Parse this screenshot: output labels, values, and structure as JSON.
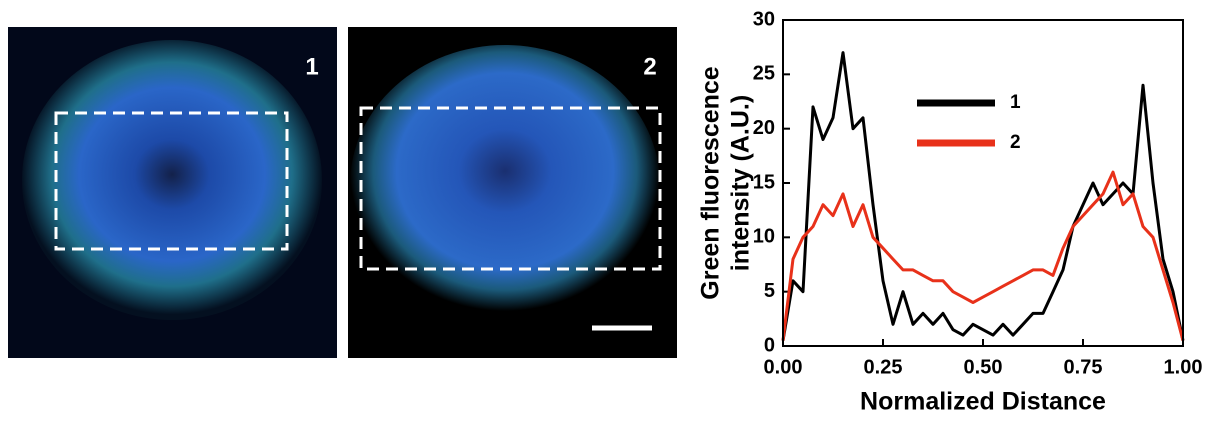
{
  "panels": [
    {
      "label": "1"
    },
    {
      "label": "2"
    }
  ],
  "chart_data": {
    "type": "line",
    "xlabel": "Normalized Distance",
    "ylabel_lines": [
      "Green fluorescence",
      "intensity (A.U.)"
    ],
    "x": [
      0,
      0.025,
      0.05,
      0.075,
      0.1,
      0.125,
      0.15,
      0.175,
      0.2,
      0.225,
      0.25,
      0.275,
      0.3,
      0.325,
      0.35,
      0.375,
      0.4,
      0.425,
      0.45,
      0.475,
      0.5,
      0.525,
      0.55,
      0.575,
      0.6,
      0.625,
      0.65,
      0.675,
      0.7,
      0.725,
      0.75,
      0.775,
      0.8,
      0.825,
      0.85,
      0.875,
      0.9,
      0.925,
      0.95,
      0.975,
      1.0
    ],
    "series": [
      {
        "name": "1",
        "color": "#000000",
        "values": [
          0.5,
          6,
          5,
          22,
          19,
          21,
          27,
          20,
          21,
          13,
          6,
          2,
          5,
          2,
          3,
          2,
          3,
          1.5,
          1,
          2,
          1.5,
          1,
          2,
          1,
          2,
          3,
          3,
          5,
          7,
          11,
          13,
          15,
          13,
          14,
          15,
          14,
          24,
          15,
          8,
          5,
          0.5
        ]
      },
      {
        "name": "2",
        "color": "#e8311a",
        "values": [
          0.5,
          8,
          10,
          11,
          13,
          12,
          14,
          11,
          13,
          10,
          9,
          8,
          7,
          7,
          6.5,
          6,
          6,
          5,
          4.5,
          4,
          4.5,
          5,
          5.5,
          6,
          6.5,
          7,
          7,
          6.5,
          9,
          11,
          12,
          13,
          14,
          16,
          13,
          14,
          11,
          10,
          7,
          4,
          0.5
        ]
      }
    ],
    "xlim": [
      0,
      1
    ],
    "xticks": [
      {
        "value": 0,
        "label": "0.00"
      },
      0.25,
      {
        "value": 0.5,
        "label": "0.50"
      },
      0.75,
      {
        "value": 1,
        "label": "1.00"
      }
    ],
    "ylim": [
      0,
      30
    ],
    "yticks": [
      0,
      5,
      10,
      15,
      20,
      25,
      30
    ]
  }
}
